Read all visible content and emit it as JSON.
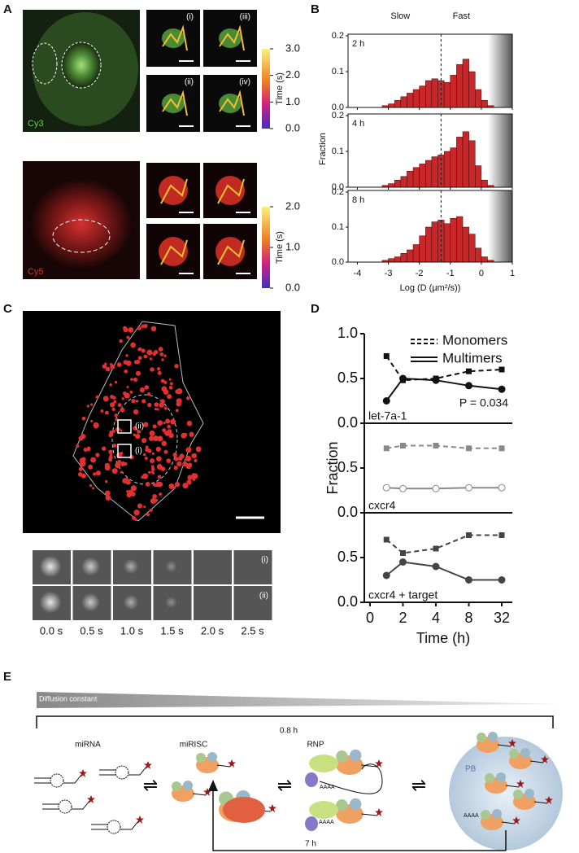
{
  "panel_a": {
    "label": "A",
    "cy3": "Cy3",
    "cy5": "Cy5",
    "insets": [
      "(i)",
      "(ii)",
      "(iii)",
      "(iv)"
    ],
    "colorbar_top": {
      "title": "Time (s)",
      "lim": [
        0,
        3
      ],
      "ticks": [
        {
          "value": 0,
          "label": "0.0"
        },
        {
          "value": 1,
          "label": "1.0"
        },
        {
          "value": 2,
          "label": "2.0"
        },
        {
          "value": 3,
          "label": "3.0"
        }
      ]
    },
    "colorbar_bottom": {
      "title": "Time (s)",
      "lim": [
        0,
        2
      ],
      "ticks": [
        {
          "value": 0,
          "label": "0.0"
        },
        {
          "value": 1,
          "label": "1.0"
        },
        {
          "value": 2,
          "label": "2.0"
        }
      ]
    }
  },
  "chart_data": [
    {
      "type": "histogram",
      "panel": "B",
      "annotations": [
        "Slow",
        "Fast"
      ],
      "xlabel": "Log (D (µm²/s))",
      "ylabel": "Fraction",
      "xlim": [
        -4.3,
        1
      ],
      "xticks": [
        -4,
        -3,
        -2,
        -1,
        0,
        1
      ],
      "ylim": [
        0,
        0.2
      ],
      "yticks": [
        {
          "value": 0,
          "label": "0.0"
        },
        0.1,
        0.2
      ],
      "threshold": -1.3,
      "color": "#c8282a",
      "bins": [
        -3.2,
        -3.0,
        -2.8,
        -2.6,
        -2.4,
        -2.2,
        -2.0,
        -1.8,
        -1.6,
        -1.4,
        -1.2,
        -1.0,
        -0.8,
        -0.6,
        -0.4,
        -0.2,
        0.0,
        0.2,
        0.4
      ],
      "subplots": [
        {
          "name": "2 h",
          "values": [
            0.005,
            0.01,
            0.02,
            0.03,
            0.04,
            0.05,
            0.06,
            0.075,
            0.08,
            0.075,
            0.07,
            0.09,
            0.12,
            0.135,
            0.1,
            0.05,
            0.02,
            0.005
          ]
        },
        {
          "name": "4 h",
          "values": [
            0.005,
            0.01,
            0.02,
            0.03,
            0.045,
            0.055,
            0.065,
            0.075,
            0.085,
            0.09,
            0.1,
            0.11,
            0.14,
            0.155,
            0.13,
            0.06,
            0.02,
            0.005
          ]
        },
        {
          "name": "8 h",
          "values": [
            0.005,
            0.01,
            0.015,
            0.025,
            0.035,
            0.05,
            0.075,
            0.1,
            0.115,
            0.12,
            0.11,
            0.125,
            0.13,
            0.1,
            0.08,
            0.04,
            0.015,
            0.005
          ]
        }
      ]
    },
    {
      "type": "line",
      "panel": "D",
      "xlabel": "Time (h)",
      "ylabel": "Fraction",
      "x": [
        1,
        2,
        4,
        8,
        32
      ],
      "xticks": [
        0,
        2,
        4,
        8,
        32
      ],
      "ylim": [
        0,
        1
      ],
      "subplots": [
        {
          "name": "let-7a-1",
          "color": "#111111",
          "annotation": "P = 0.034",
          "yticks": [
            {
              "value": 0,
              "label": "0.0"
            },
            {
              "value": 0.5,
              "label": "0.5"
            },
            {
              "value": 1,
              "label": "1.0"
            }
          ],
          "series": [
            {
              "name": "Monomers",
              "values": [
                0.75,
                0.48,
                0.5,
                0.58,
                0.6
              ]
            },
            {
              "name": "Multimers",
              "values": [
                0.25,
                0.5,
                0.48,
                0.42,
                0.38
              ]
            }
          ]
        },
        {
          "name": "cxcr4",
          "color": "#8a8a8a",
          "yticks": [
            {
              "value": 0,
              "label": "0.0"
            },
            {
              "value": 0.5,
              "label": "0.5"
            }
          ],
          "series": [
            {
              "name": "Monomers",
              "values": [
                0.72,
                0.75,
                0.75,
                0.72,
                0.72
              ]
            },
            {
              "name": "Multimers",
              "values": [
                0.28,
                0.27,
                0.27,
                0.28,
                0.28
              ]
            }
          ]
        },
        {
          "name": "cxcr4 + target",
          "color": "#444444",
          "yticks": [
            {
              "value": 0,
              "label": "0.0"
            },
            {
              "value": 0.5,
              "label": "0.5"
            }
          ],
          "series": [
            {
              "name": "Monomers",
              "values": [
                0.7,
                0.55,
                0.6,
                0.75,
                0.75
              ]
            },
            {
              "name": "Multimers",
              "values": [
                0.3,
                0.45,
                0.4,
                0.25,
                0.25
              ]
            }
          ]
        }
      ]
    }
  ],
  "panel_c": {
    "label": "C",
    "insets": [
      "(ii)",
      "(i)"
    ],
    "row_labels": [
      "(i)",
      "(ii)"
    ],
    "times": [
      "0.0 s",
      "0.5 s",
      "1.0 s",
      "1.5 s",
      "2.0 s",
      "2.5 s"
    ]
  },
  "panel_e": {
    "label": "E",
    "gradient": "Diffusion constant",
    "forward": "0.8 h",
    "back": "7 h",
    "states": [
      "miRNA",
      "miRISC",
      "RNP"
    ],
    "pb": "PB",
    "poly_a": "AAAA"
  }
}
